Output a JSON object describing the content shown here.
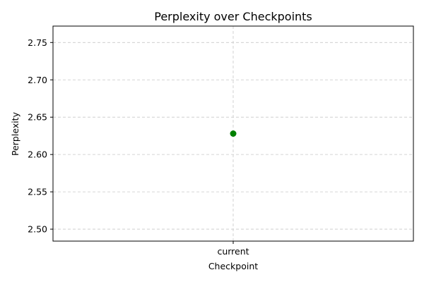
{
  "chart_data": {
    "type": "scatter",
    "title": "Perplexity over Checkpoints",
    "xlabel": "Checkpoint",
    "ylabel": "Perplexity",
    "categories": [
      "current"
    ],
    "series": [
      {
        "values": [
          2.628
        ],
        "color": "#008000"
      }
    ],
    "ylim": [
      2.484,
      2.772
    ],
    "yticks": [
      "2.50",
      "2.55",
      "2.60",
      "2.65",
      "2.70",
      "2.75"
    ],
    "grid": true,
    "legend": "none"
  }
}
